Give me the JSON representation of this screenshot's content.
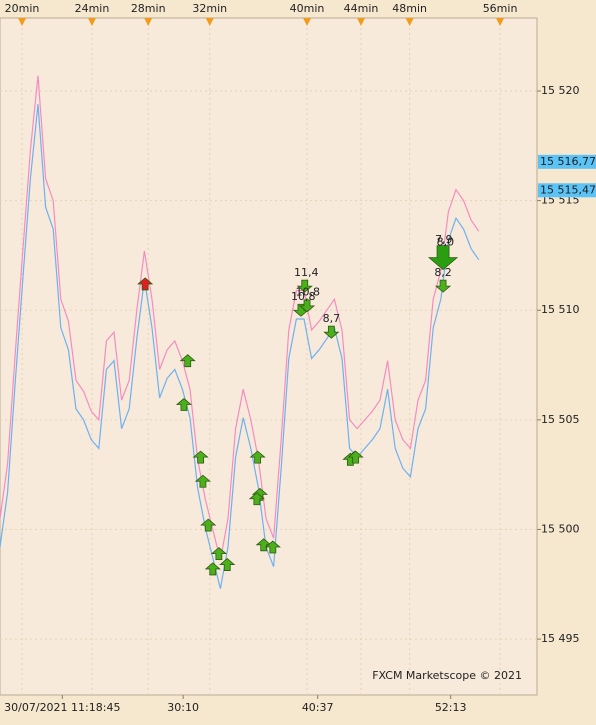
{
  "chart_data": {
    "type": "line",
    "watermark": "FXCM Marketscope © 2021",
    "x": [
      0,
      1,
      2,
      3,
      4,
      5,
      6,
      7,
      8,
      9,
      10,
      11,
      12,
      13,
      14,
      15,
      16,
      17,
      18,
      19,
      20,
      21,
      22,
      23,
      24,
      25,
      26,
      27,
      28,
      29,
      30,
      31,
      32,
      33,
      34,
      35,
      36,
      37,
      38,
      39,
      40,
      41,
      42,
      43,
      44,
      45,
      46,
      47,
      48,
      49,
      50,
      51,
      52,
      53,
      54,
      55,
      56,
      57,
      58,
      59,
      60,
      61,
      62,
      63
    ],
    "series": [
      {
        "color": "#f58cc0",
        "values": [
          15500.5,
          15503,
          15508,
          15512.7,
          15517.3,
          15520.7,
          15516,
          15515,
          15510.5,
          15509.5,
          15506.8,
          15506.3,
          15505.4,
          15505,
          15508.6,
          15509,
          15505.9,
          15506.8,
          15510,
          15512.7,
          15510.5,
          15507.3,
          15508.2,
          15508.6,
          15507.7,
          15506.4,
          15503.2,
          15501.4,
          15500,
          15498.6,
          15500.5,
          15504.6,
          15506.4,
          15505,
          15503.2,
          15500.5,
          15499.6,
          15504.1,
          15509.1,
          15510.9,
          15510.9,
          15509.1,
          15509.5,
          15510,
          15510.5,
          15509.1,
          15505,
          15504.6,
          15505,
          15505.4,
          15505.9,
          15507.7,
          15505,
          15504.1,
          15503.7,
          15505.9,
          15506.8,
          15510.5,
          15511.8,
          15514.5,
          15515.5,
          15515,
          15514.1,
          15513.6
        ]
      },
      {
        "color": "#6fb0f0",
        "values": [
          15499.2,
          15501.7,
          15506.7,
          15511.4,
          15516,
          15519.4,
          15514.7,
          15513.7,
          15509.2,
          15508.2,
          15505.5,
          15505,
          15504.1,
          15503.7,
          15507.3,
          15507.7,
          15504.6,
          15505.5,
          15508.7,
          15511.4,
          15509.2,
          15506,
          15506.9,
          15507.3,
          15506.4,
          15505.1,
          15501.9,
          15500.1,
          15498.7,
          15497.3,
          15499.2,
          15503.3,
          15505.1,
          15503.7,
          15501.9,
          15499.2,
          15498.3,
          15502.8,
          15507.8,
          15509.6,
          15509.6,
          15507.8,
          15508.2,
          15508.7,
          15509.2,
          15507.8,
          15503.7,
          15503.3,
          15503.7,
          15504.1,
          15504.6,
          15506.4,
          15503.7,
          15502.8,
          15502.4,
          15504.6,
          15505.5,
          15509.2,
          15510.5,
          15513.2,
          15514.2,
          15513.7,
          15512.8,
          15512.3
        ]
      }
    ],
    "xlim": [
      0,
      70.66
    ],
    "ylim": [
      15492.45,
      15523.33
    ],
    "yticks": [
      {
        "value": 15495,
        "label": "15 495"
      },
      {
        "value": 15500,
        "label": "15 500"
      },
      {
        "value": 15505,
        "label": "15 505"
      },
      {
        "value": 15510,
        "label": "15 510"
      },
      {
        "value": 15515,
        "label": "15 515"
      },
      {
        "value": 15520,
        "label": "15 520"
      }
    ],
    "xticks": [
      {
        "value": 8.2,
        "label": "30/07/2021 11:18:45"
      },
      {
        "value": 24.1,
        "label": "30:10"
      },
      {
        "value": 41.8,
        "label": "40:37"
      },
      {
        "value": 59.3,
        "label": "52:13"
      }
    ],
    "top_ticks": [
      {
        "value": 2.9,
        "label": "20min"
      },
      {
        "value": 12.1,
        "label": "24min"
      },
      {
        "value": 19.5,
        "label": "28min"
      },
      {
        "value": 27.6,
        "label": "32min"
      },
      {
        "value": 40.4,
        "label": "40min"
      },
      {
        "value": 47.5,
        "label": "44min"
      },
      {
        "value": 53.9,
        "label": "48min"
      },
      {
        "value": 65.8,
        "label": "56min"
      }
    ],
    "price_tags": [
      {
        "value": 15516.77,
        "label": "15 516,77"
      },
      {
        "value": 15515.47,
        "label": "15 515,47"
      }
    ],
    "signals": [
      {
        "x": 19.1,
        "price": 15511.2,
        "dir": "up",
        "color": "#e02020"
      },
      {
        "x": 24.7,
        "price": 15507.7,
        "dir": "up",
        "color": "#4caf1c"
      },
      {
        "x": 24.2,
        "price": 15505.7,
        "dir": "up",
        "color": "#4caf1c"
      },
      {
        "x": 26.4,
        "price": 15503.3,
        "dir": "up",
        "color": "#4caf1c"
      },
      {
        "x": 26.7,
        "price": 15502.2,
        "dir": "up",
        "color": "#4caf1c"
      },
      {
        "x": 27.4,
        "price": 15500.2,
        "dir": "up",
        "color": "#4caf1c"
      },
      {
        "x": 28.0,
        "price": 15498.2,
        "dir": "up",
        "color": "#4caf1c"
      },
      {
        "x": 28.8,
        "price": 15498.9,
        "dir": "up",
        "color": "#4caf1c"
      },
      {
        "x": 29.9,
        "price": 15498.4,
        "dir": "up",
        "color": "#4caf1c"
      },
      {
        "x": 33.9,
        "price": 15503.3,
        "dir": "up",
        "color": "#4caf1c"
      },
      {
        "x": 34.2,
        "price": 15501.6,
        "dir": "up",
        "color": "#4caf1c"
      },
      {
        "x": 33.8,
        "price": 15501.4,
        "dir": "up",
        "color": "#4caf1c"
      },
      {
        "x": 34.7,
        "price": 15499.3,
        "dir": "up",
        "color": "#4caf1c"
      },
      {
        "x": 35.9,
        "price": 15499.2,
        "dir": "up",
        "color": "#4caf1c"
      },
      {
        "x": 46.7,
        "price": 15503.3,
        "dir": "up",
        "color": "#4caf1c"
      },
      {
        "x": 46.1,
        "price": 15503.2,
        "dir": "up",
        "color": "#4caf1c"
      },
      {
        "x": 46.8,
        "price": 15503.3,
        "dir": "up",
        "color": "#4caf1c"
      },
      {
        "x": 40.1,
        "price": 15511.1,
        "dir": "down",
        "color": "#4caf1c"
      },
      {
        "x": 39.6,
        "price": 15510.0,
        "dir": "down",
        "color": "#4caf1c"
      },
      {
        "x": 40.4,
        "price": 15510.2,
        "dir": "down",
        "color": "#4caf1c"
      },
      {
        "x": 43.6,
        "price": 15509.0,
        "dir": "down",
        "color": "#4caf1c"
      },
      {
        "x": 58.3,
        "price": 15511.1,
        "dir": "down",
        "color": "#4caf1c"
      },
      {
        "x": 58.3,
        "price": 15512.4,
        "dir": "down",
        "color": "#2a9d10",
        "size": "large"
      }
    ],
    "annotations": [
      {
        "x": 40.3,
        "price": 15511.7,
        "text": "11,4"
      },
      {
        "x": 39.9,
        "price": 15510.6,
        "text": "10,8"
      },
      {
        "x": 40.5,
        "price": 15510.8,
        "text": "10,8"
      },
      {
        "x": 43.6,
        "price": 15509.6,
        "text": "8,7"
      },
      {
        "x": 58.4,
        "price": 15513.2,
        "text": "7,9"
      },
      {
        "x": 58.6,
        "price": 15513.1,
        "text": "8,0"
      },
      {
        "x": 58.3,
        "price": 15511.7,
        "text": "8,2"
      }
    ],
    "grid": true
  }
}
